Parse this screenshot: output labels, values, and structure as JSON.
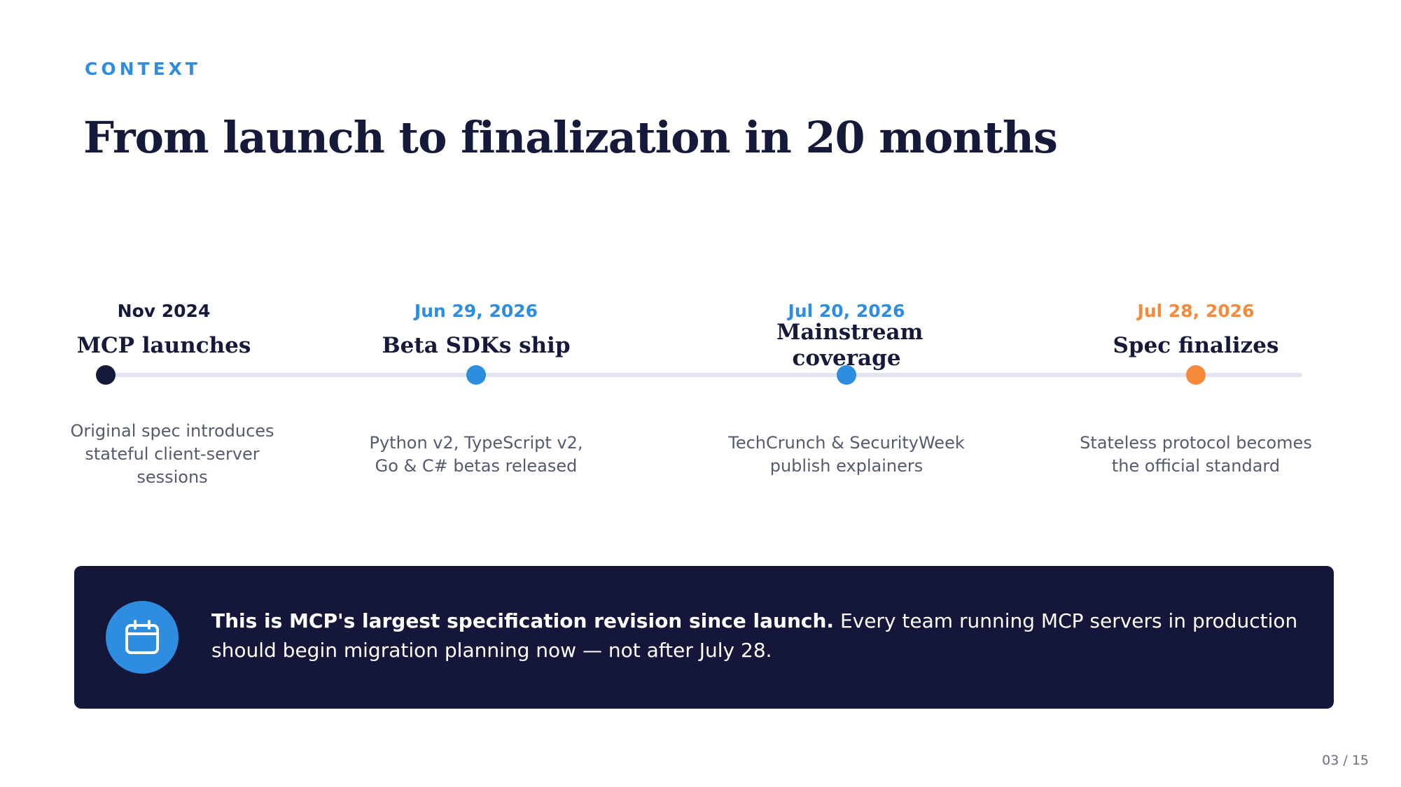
{
  "eyebrow": "CONTEXT",
  "title": "From launch to finalization in 20 months",
  "milestones": [
    {
      "date": "Nov 2024",
      "heading": "MCP launches",
      "description": "Original spec introduces stateful client-server sessions",
      "color": "#151a3a"
    },
    {
      "date": "Jun 29, 2026",
      "heading": "Beta SDKs ship",
      "description": "Python v2, TypeScript v2, Go & C# betas released",
      "color": "#2f8de0"
    },
    {
      "date": "Jul 20, 2026",
      "heading": "Mainstream coverage",
      "description": "TechCrunch & SecurityWeek publish explainers",
      "color": "#2f8de0"
    },
    {
      "date": "Jul 28, 2026",
      "heading": "Spec finalizes",
      "description": "Stateless protocol becomes the official standard",
      "color": "#f58a3a"
    }
  ],
  "callout": {
    "icon": "calendar-icon",
    "bold": "This is MCP's largest specification revision since launch.",
    "text": " Every team running MCP servers in production should begin migration planning now — not after July 28."
  },
  "page_number": "03 / 15"
}
